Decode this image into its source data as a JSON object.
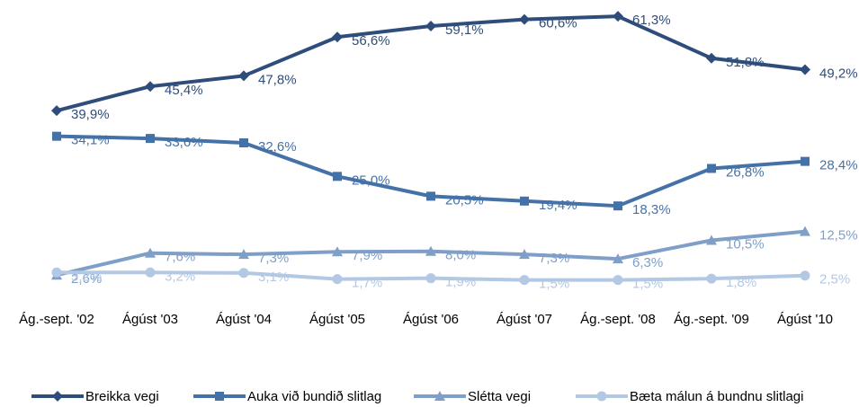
{
  "chart_data": {
    "type": "line",
    "categories": [
      "Ág.-sept. '02",
      "Ágúst '03",
      "Ágúst '04",
      "Ágúst '05",
      "Ágúst '06",
      "Ágúst '07",
      "Ág.-sept. '08",
      "Ág.-sept. '09",
      "Ágúst '10"
    ],
    "ylim": [
      0,
      65
    ],
    "series": [
      {
        "name": "Breikka vegi",
        "color": "#2e4d7b",
        "marker": "diamond",
        "values": [
          39.9,
          45.4,
          47.8,
          56.6,
          59.1,
          60.6,
          61.3,
          51.8,
          49.2
        ],
        "value_labels": [
          "39,9%",
          "45,4%",
          "47,8%",
          "56,6%",
          "59,1%",
          "60,6%",
          "61,3%",
          "51,8%",
          "49,2%"
        ]
      },
      {
        "name": "Auka við bundið slitlag",
        "color": "#4472a8",
        "marker": "square",
        "values": [
          34.1,
          33.6,
          32.6,
          25.0,
          20.5,
          19.4,
          18.3,
          26.8,
          28.4
        ],
        "value_labels": [
          "34,1%",
          "33,6%",
          "32,6%",
          "25,0%",
          "20,5%",
          "19,4%",
          "18,3%",
          "26,8%",
          "28,4%"
        ]
      },
      {
        "name": "Slétta vegi",
        "color": "#7f9fc8",
        "marker": "triangle",
        "values": [
          2.6,
          7.6,
          7.3,
          7.9,
          8.0,
          7.3,
          6.3,
          10.5,
          12.5
        ],
        "value_labels": [
          "2,6%",
          "7,6%",
          "7,3%",
          "7,9%",
          "8,0%",
          "7,3%",
          "6,3%",
          "10,5%",
          "12,5%"
        ]
      },
      {
        "name": "Bæta málun á bundnu slitlagi",
        "color": "#b3c8e3",
        "marker": "circle",
        "values": [
          3.2,
          3.2,
          3.1,
          1.7,
          1.9,
          1.5,
          1.5,
          1.8,
          2.5
        ],
        "value_labels": [
          "3,2%",
          "3,2%",
          "3,1%",
          "1,7%",
          "1,9%",
          "1,5%",
          "1,5%",
          "1,8%",
          "2,5%"
        ]
      }
    ]
  }
}
